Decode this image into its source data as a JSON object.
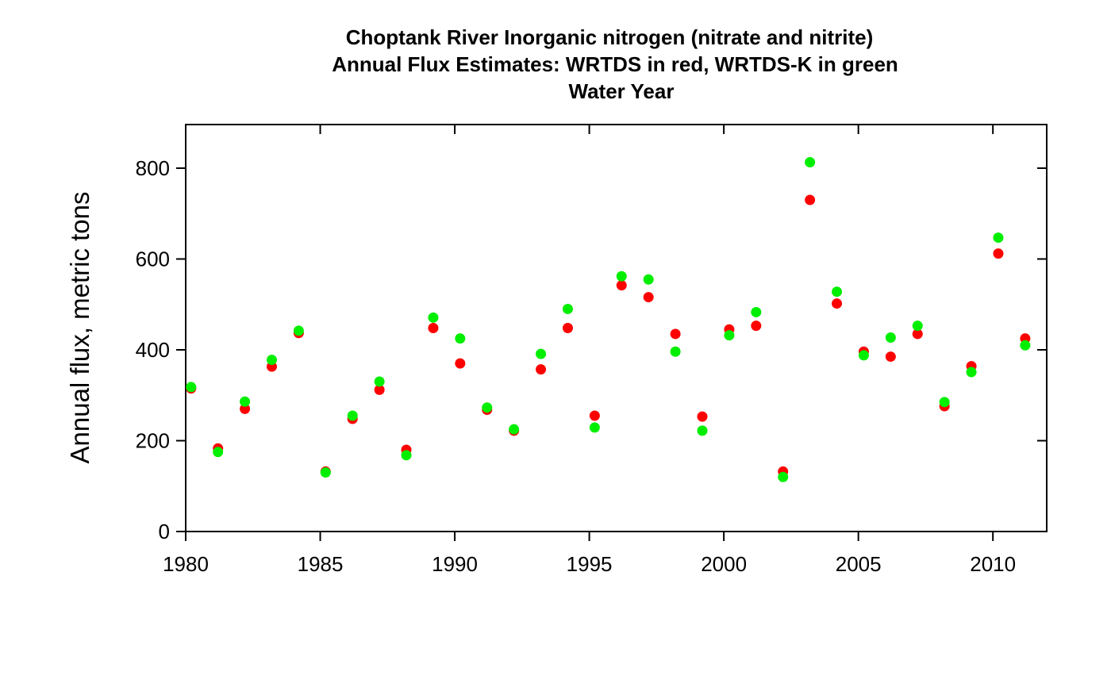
{
  "chart_data": {
    "type": "scatter",
    "title_lines": [
      "Choptank River  Inorganic nitrogen (nitrate and nitrite)",
      "Annual Flux Estimates: WRTDS in red, WRTDS-K in green",
      "Water Year"
    ],
    "xlabel": "",
    "ylabel": "Annual flux, metric tons",
    "xlim": [
      1980,
      2012
    ],
    "ylim": [
      0,
      896
    ],
    "x_ticks": [
      1980,
      1985,
      1990,
      1995,
      2000,
      2005,
      2010
    ],
    "y_ticks": [
      0,
      200,
      400,
      600,
      800
    ],
    "grid": false,
    "legend": "none",
    "series": [
      {
        "color": "#ff0000",
        "points": [
          [
            1980.2,
            315
          ],
          [
            1981.2,
            183
          ],
          [
            1982.2,
            270
          ],
          [
            1983.2,
            363
          ],
          [
            1984.2,
            437
          ],
          [
            1985.2,
            132
          ],
          [
            1986.2,
            248
          ],
          [
            1987.2,
            312
          ],
          [
            1988.2,
            180
          ],
          [
            1989.2,
            448
          ],
          [
            1990.2,
            370
          ],
          [
            1991.2,
            268
          ],
          [
            1992.2,
            222
          ],
          [
            1993.2,
            357
          ],
          [
            1994.2,
            448
          ],
          [
            1995.2,
            255
          ],
          [
            1996.2,
            542
          ],
          [
            1997.2,
            516
          ],
          [
            1998.2,
            435
          ],
          [
            1999.2,
            253
          ],
          [
            2000.2,
            445
          ],
          [
            2001.2,
            453
          ],
          [
            2002.2,
            132
          ],
          [
            2003.2,
            730
          ],
          [
            2004.2,
            502
          ],
          [
            2005.2,
            396
          ],
          [
            2006.2,
            385
          ],
          [
            2007.2,
            435
          ],
          [
            2008.2,
            276
          ],
          [
            2009.2,
            364
          ],
          [
            2010.2,
            612
          ],
          [
            2011.2,
            425
          ]
        ]
      },
      {
        "color": "#00ee00",
        "points": [
          [
            1980.2,
            318
          ],
          [
            1981.2,
            175
          ],
          [
            1982.2,
            286
          ],
          [
            1983.2,
            378
          ],
          [
            1984.2,
            442
          ],
          [
            1985.2,
            130
          ],
          [
            1986.2,
            255
          ],
          [
            1987.2,
            330
          ],
          [
            1988.2,
            168
          ],
          [
            1989.2,
            471
          ],
          [
            1990.2,
            425
          ],
          [
            1991.2,
            273
          ],
          [
            1992.2,
            225
          ],
          [
            1993.2,
            391
          ],
          [
            1994.2,
            490
          ],
          [
            1995.2,
            229
          ],
          [
            1996.2,
            562
          ],
          [
            1997.2,
            555
          ],
          [
            1998.2,
            396
          ],
          [
            1999.2,
            222
          ],
          [
            2000.2,
            432
          ],
          [
            2001.2,
            483
          ],
          [
            2002.2,
            120
          ],
          [
            2003.2,
            813
          ],
          [
            2004.2,
            528
          ],
          [
            2005.2,
            388
          ],
          [
            2006.2,
            427
          ],
          [
            2007.2,
            453
          ],
          [
            2008.2,
            285
          ],
          [
            2009.2,
            351
          ],
          [
            2010.2,
            647
          ],
          [
            2011.2,
            410
          ]
        ]
      }
    ]
  }
}
